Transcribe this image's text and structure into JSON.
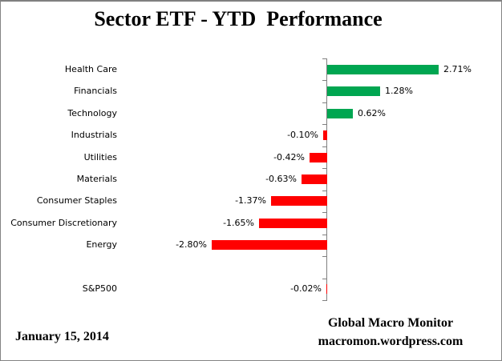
{
  "header": {
    "title": "Sector ETF - YTD  Performance"
  },
  "chart_data": {
    "type": "bar",
    "orientation": "horizontal",
    "title": "Sector ETF - YTD  Performance",
    "unit": "%",
    "categories": [
      "Health Care",
      "Financials",
      "Technology",
      "Industrials",
      "Utilities",
      "Materials",
      "Consumer Staples",
      "Consumer Discretionary",
      "Energy",
      "S&P500"
    ],
    "values": [
      2.71,
      1.28,
      0.62,
      -0.1,
      -0.42,
      -0.63,
      -1.37,
      -1.65,
      -2.8,
      -0.02
    ],
    "rows": [
      {
        "category": "Health Care",
        "value": 2.71,
        "label": "2.71%",
        "slot": 0
      },
      {
        "category": "Financials",
        "value": 1.28,
        "label": "1.28%",
        "slot": 1
      },
      {
        "category": "Technology",
        "value": 0.62,
        "label": "0.62%",
        "slot": 2
      },
      {
        "category": "Industrials",
        "value": -0.1,
        "label": "-0.10%",
        "slot": 3
      },
      {
        "category": "Utilities",
        "value": -0.42,
        "label": "-0.42%",
        "slot": 4
      },
      {
        "category": "Materials",
        "value": -0.63,
        "label": "-0.63%",
        "slot": 5
      },
      {
        "category": "Consumer Staples",
        "value": -1.37,
        "label": "-1.37%",
        "slot": 6
      },
      {
        "category": "Consumer Discretionary",
        "value": -1.65,
        "label": "-1.65%",
        "slot": 7
      },
      {
        "category": "Energy",
        "value": -2.8,
        "label": "-2.80%",
        "slot": 8
      },
      {
        "category": "S&P500",
        "value": -0.02,
        "label": "-0.02%",
        "slot": 10
      }
    ],
    "axis": {
      "zero_line": true,
      "tick_count": 12,
      "value_labels_shown": true,
      "gridlines": false,
      "legend": "none"
    },
    "colors": {
      "positive": "#00A651",
      "negative": "#FF0000",
      "axis": "#808080"
    }
  },
  "footer": {
    "date": "January 15, 2014",
    "source_line1": "Global Macro Monitor",
    "source_line2": "macromon.wordpress.com"
  }
}
